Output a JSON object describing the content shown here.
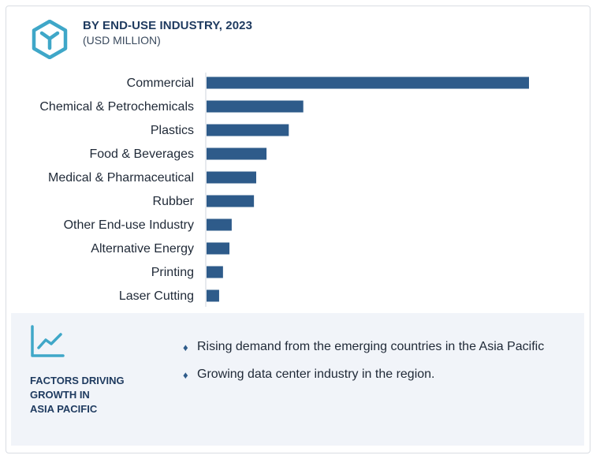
{
  "header": {
    "title": "BY END-USE INDUSTRY, 2023",
    "subtitle": "(USD MILLION)",
    "logo_icon": "hexagon-y-logo-icon"
  },
  "colors": {
    "bar": "#2e5b8a",
    "accent": "#3fa7c8",
    "axis": "#cfd5dc",
    "panel_bg": "#f1f4f9"
  },
  "chart_data": {
    "type": "bar",
    "orientation": "horizontal",
    "title": "BY END-USE INDUSTRY, 2023",
    "subtitle": "(USD MILLION)",
    "categories": [
      "Commercial",
      "Chemical & Petrochemicals",
      "Plastics",
      "Food & Beverages",
      "Medical & Pharmaceutical",
      "Rubber",
      "Other End-use Industry",
      "Alternative Energy",
      "Printing",
      "Laser Cutting"
    ],
    "values": [
      100,
      30,
      25.5,
      18.6,
      15.4,
      14.7,
      7.8,
      7.1,
      5.1,
      3.9
    ],
    "xlim": [
      0,
      100
    ],
    "grid": false,
    "legend": "none"
  },
  "factors": {
    "icon": "line-chart-growth-icon",
    "title_lines": [
      "FACTORS DRIVING",
      "GROWTH IN",
      "ASIA PACIFIC"
    ],
    "bullets": [
      "Rising demand from the emerging countries in the Asia Pacific",
      "Growing data center industry in the region."
    ],
    "bullet_icon": "diamond-bullet-icon"
  }
}
